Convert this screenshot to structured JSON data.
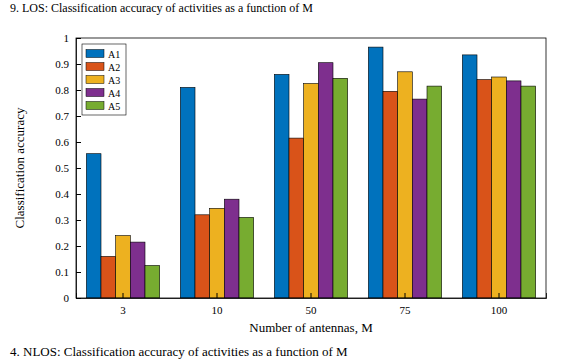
{
  "chart_data": {
    "type": "bar",
    "x_label": "Number of antennas, M",
    "y_label": "Classification accuracy",
    "annotations": [
      "9. LOS: Classification accuracy of activities as a function of M",
      "4. NLOS: Classification accuracy of activities as a function of M"
    ],
    "categories": [
      "3",
      "10",
      "50",
      "75",
      "100"
    ],
    "series": [
      {
        "name": "A1",
        "color": "#0072bd",
        "values": [
          0.555,
          0.81,
          0.86,
          0.965,
          0.935
        ]
      },
      {
        "name": "A2",
        "color": "#d95319",
        "values": [
          0.16,
          0.32,
          0.615,
          0.795,
          0.84
        ]
      },
      {
        "name": "A3",
        "color": "#edb120",
        "values": [
          0.24,
          0.345,
          0.825,
          0.87,
          0.85
        ]
      },
      {
        "name": "A4",
        "color": "#7e2f8e",
        "values": [
          0.215,
          0.38,
          0.905,
          0.765,
          0.835
        ]
      },
      {
        "name": "A5",
        "color": "#77ac30",
        "values": [
          0.125,
          0.31,
          0.845,
          0.815,
          0.815
        ]
      }
    ],
    "ylim": [
      0,
      1
    ],
    "yticks": [
      0,
      0.1,
      0.2,
      0.3,
      0.4,
      0.5,
      0.6,
      0.7,
      0.8,
      0.9,
      1
    ],
    "grid": false,
    "legend": "top-left"
  }
}
